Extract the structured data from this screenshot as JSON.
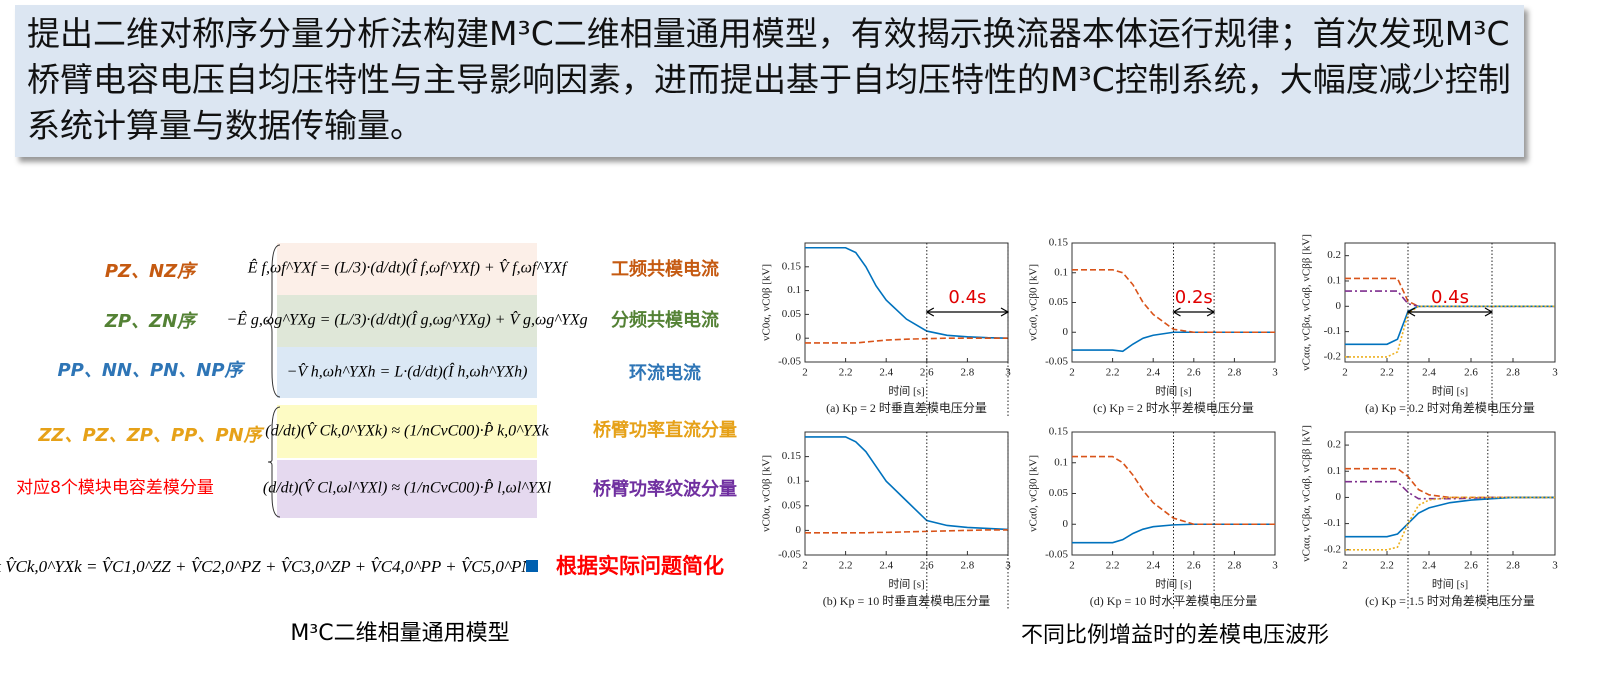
{
  "header": {
    "text": "提出二维对称序分量分析法构建M³C二维相量通用模型，有效揭示换流器本体运行规律；首次发现M³C桥臂电容电压自均压特性与主导影响因素，进而提出基于自均压特性的M³C控制系统，大幅度减少控制系统计算量与数据传输量。"
  },
  "model": {
    "rows": [
      {
        "sequence": "PZ、NZ序",
        "equation": "Ê f,ωf^YXf = (L/3)·(d/dt)(Î f,ωf^YXf) + V̂ f,ωf^YXf",
        "component": "工频共模电流"
      },
      {
        "sequence": "ZP、ZN序",
        "equation": "−Ê g,ωg^YXg = (L/3)·(d/dt)(Î g,ωg^YXg) + V̂ g,ωg^YXg",
        "component": "分频共模电流"
      },
      {
        "sequence": "PP、NN、PN、NP序",
        "equation": "−V̂ h,ωh^YXh = L·(d/dt)(Î h,ωh^YXh)",
        "component": "环流电流"
      },
      {
        "sequence": "ZZ、PZ、ZP、PP、PN序",
        "equation": "(d/dt)(V̂ Ck,0^YXk) ≈ (1/nCvC00)·P̂ k,0^YXk",
        "component": "桥臂功率直流分量"
      },
      {
        "sequence": "对应8个模块电容差模分量",
        "equation": "(d/dt)(V̂ Cl,ωl^YXl) ≈ (1/nCvC00)·P̂ l,ωl^YXl",
        "component": "桥臂功率纹波分量"
      }
    ],
    "sum_equation": "Σk V̂Ck,0^YXk = V̂C1,0^ZZ + V̂C2,0^PZ + V̂C3,0^ZP + V̂C4,0^PP + V̂C5,0^PN",
    "note": "根据实际问题简化",
    "caption": "M³C二维相量通用模型"
  },
  "waveform_caption": "不同比例增益时的差模电压波形",
  "chart_data": [
    {
      "type": "line",
      "ylabel": "vC0α, vC0β [kV]",
      "xlabel": "时间 [s]",
      "caption": "(a) Kp = 2 时垂直差模电压分量",
      "x": [
        2,
        2.1,
        2.2,
        2.25,
        2.3,
        2.35,
        2.4,
        2.5,
        2.6,
        2.7,
        2.8,
        2.9,
        3
      ],
      "xlim": [
        2,
        3
      ],
      "xticks": [
        2,
        2.2,
        2.4,
        2.6,
        2.8,
        3
      ],
      "ylim": [
        -0.05,
        0.2
      ],
      "yticks": [
        -0.05,
        0,
        0.05,
        0.1,
        0.15
      ],
      "series": [
        {
          "color": "#0072bd",
          "dash": "solid",
          "values": [
            0.19,
            0.19,
            0.19,
            0.18,
            0.15,
            0.11,
            0.08,
            0.04,
            0.015,
            0.006,
            0.003,
            0.001,
            0
          ]
        },
        {
          "color": "#d95319",
          "dash": "dashed",
          "values": [
            -0.01,
            -0.01,
            -0.01,
            -0.01,
            -0.008,
            -0.006,
            -0.004,
            -0.002,
            -0.001,
            0,
            0,
            0,
            0
          ]
        }
      ],
      "vlines": [
        2.6,
        3
      ],
      "annotation": {
        "text": "0.4s",
        "from": 2.6,
        "to": 3
      }
    },
    {
      "type": "line",
      "ylabel": "vCα0, vCβ0 [kV]",
      "xlabel": "时间 [s]",
      "caption": "(c) Kp = 2 时水平差模电压分量",
      "x": [
        2,
        2.1,
        2.2,
        2.25,
        2.3,
        2.35,
        2.4,
        2.5,
        2.6,
        2.7,
        2.8,
        2.9,
        3
      ],
      "xlim": [
        2,
        3
      ],
      "xticks": [
        2,
        2.2,
        2.4,
        2.6,
        2.8,
        3
      ],
      "ylim": [
        -0.05,
        0.15
      ],
      "yticks": [
        -0.05,
        0,
        0.05,
        0.1,
        0.15
      ],
      "series": [
        {
          "color": "#0072bd",
          "dash": "solid",
          "values": [
            -0.03,
            -0.03,
            -0.03,
            -0.032,
            -0.02,
            -0.01,
            -0.005,
            0,
            0,
            0,
            0,
            0,
            0
          ]
        },
        {
          "color": "#d95319",
          "dash": "dashed",
          "values": [
            0.105,
            0.105,
            0.105,
            0.1,
            0.08,
            0.05,
            0.03,
            0.005,
            0,
            0,
            0,
            0,
            0
          ]
        }
      ],
      "vlines": [
        2.5,
        2.7
      ],
      "annotation": {
        "text": "0.2s",
        "from": 2.5,
        "to": 2.7
      }
    },
    {
      "type": "line",
      "ylabel": "vCαα, vCβα, vCαβ, vCββ [kV]",
      "xlabel": "时间 [s]",
      "caption": "(a) Kp = 0.2 时对角差模电压分量",
      "x": [
        2,
        2.1,
        2.2,
        2.25,
        2.3,
        2.35,
        2.4,
        2.5,
        2.6,
        2.7,
        2.8,
        2.9,
        3
      ],
      "xlim": [
        2,
        3
      ],
      "xticks": [
        2,
        2.2,
        2.4,
        2.6,
        2.8,
        3
      ],
      "ylim": [
        -0.22,
        0.25
      ],
      "yticks": [
        -0.2,
        -0.1,
        0,
        0.1,
        0.2
      ],
      "series": [
        {
          "color": "#d95319",
          "dash": "dashed",
          "values": [
            0.11,
            0.11,
            0.11,
            0.11,
            0.02,
            0,
            0,
            0,
            0,
            0,
            0,
            0,
            0
          ]
        },
        {
          "color": "#7e2f8e",
          "dash": "dashdot",
          "values": [
            0.06,
            0.06,
            0.06,
            0.06,
            0.01,
            0,
            0,
            0,
            0,
            0,
            0,
            0,
            0
          ]
        },
        {
          "color": "#0072bd",
          "dash": "solid",
          "values": [
            -0.15,
            -0.15,
            -0.15,
            -0.13,
            -0.02,
            0,
            0,
            0,
            0,
            0,
            0,
            0,
            0
          ]
        },
        {
          "color": "#edb120",
          "dash": "dotted",
          "values": [
            -0.2,
            -0.2,
            -0.2,
            -0.18,
            -0.03,
            0,
            0,
            0,
            0,
            0,
            0,
            0,
            0
          ]
        }
      ],
      "vlines": [
        2.3,
        2.7
      ],
      "annotation": {
        "text": "0.4s",
        "from": 2.3,
        "to": 2.7
      }
    },
    {
      "type": "line",
      "ylabel": "vC0α, vC0β [kV]",
      "xlabel": "时间 [s]",
      "caption": "(b) Kp = 10 时垂直差模电压分量",
      "x": [
        2,
        2.1,
        2.2,
        2.25,
        2.3,
        2.35,
        2.4,
        2.5,
        2.6,
        2.7,
        2.8,
        2.9,
        3
      ],
      "xlim": [
        2,
        3
      ],
      "xticks": [
        2,
        2.2,
        2.4,
        2.6,
        2.8,
        3
      ],
      "ylim": [
        -0.05,
        0.2
      ],
      "yticks": [
        -0.05,
        0,
        0.05,
        0.1,
        0.15
      ],
      "series": [
        {
          "color": "#0072bd",
          "dash": "solid",
          "values": [
            0.19,
            0.19,
            0.19,
            0.18,
            0.16,
            0.13,
            0.1,
            0.06,
            0.02,
            0.01,
            0.006,
            0.004,
            0.002
          ]
        },
        {
          "color": "#d95319",
          "dash": "dashed",
          "values": [
            -0.005,
            -0.005,
            -0.005,
            -0.005,
            -0.005,
            -0.004,
            -0.004,
            -0.003,
            -0.002,
            -0.001,
            0,
            0.001,
            0.001
          ]
        }
      ],
      "vlines": [
        2.6,
        3
      ]
    },
    {
      "type": "line",
      "ylabel": "vCα0, vCβ0 [kV]",
      "xlabel": "时间 [s]",
      "caption": "(d) Kp = 10 时水平差模电压分量",
      "x": [
        2,
        2.1,
        2.2,
        2.25,
        2.3,
        2.35,
        2.4,
        2.5,
        2.6,
        2.7,
        2.8,
        2.9,
        3
      ],
      "xlim": [
        2,
        3
      ],
      "xticks": [
        2,
        2.2,
        2.4,
        2.6,
        2.8,
        3
      ],
      "ylim": [
        -0.05,
        0.15
      ],
      "yticks": [
        -0.05,
        0,
        0.05,
        0.1,
        0.15
      ],
      "series": [
        {
          "color": "#0072bd",
          "dash": "solid",
          "values": [
            -0.03,
            -0.03,
            -0.03,
            -0.025,
            -0.015,
            -0.008,
            -0.004,
            -0.001,
            0,
            0,
            0,
            0,
            0
          ]
        },
        {
          "color": "#d95319",
          "dash": "dashed",
          "values": [
            0.11,
            0.11,
            0.11,
            0.1,
            0.08,
            0.055,
            0.035,
            0.01,
            0,
            0,
            0,
            0,
            0
          ]
        }
      ],
      "vlines": [
        2.5,
        2.7
      ]
    },
    {
      "type": "line",
      "ylabel": "vCαα, vCβα, vCαβ, vCββ [kV]",
      "xlabel": "时间 [s]",
      "caption": "(c) Kp = 1.5 时对角差模电压分量",
      "x": [
        2,
        2.1,
        2.2,
        2.25,
        2.3,
        2.35,
        2.4,
        2.5,
        2.6,
        2.7,
        2.8,
        2.9,
        3
      ],
      "xlim": [
        2,
        3
      ],
      "xticks": [
        2,
        2.2,
        2.4,
        2.6,
        2.8,
        3
      ],
      "ylim": [
        -0.22,
        0.25
      ],
      "yticks": [
        -0.2,
        -0.1,
        0,
        0.1,
        0.2
      ],
      "series": [
        {
          "color": "#d95319",
          "dash": "dashed",
          "values": [
            0.11,
            0.11,
            0.11,
            0.11,
            0.08,
            0.03,
            0.01,
            0,
            0,
            0,
            0,
            0,
            0
          ]
        },
        {
          "color": "#7e2f8e",
          "dash": "dashdot",
          "values": [
            0.06,
            0.06,
            0.06,
            0.06,
            0.02,
            -0.005,
            -0.005,
            -0.005,
            -0.003,
            0,
            0,
            0,
            0
          ]
        },
        {
          "color": "#0072bd",
          "dash": "solid",
          "values": [
            -0.15,
            -0.15,
            -0.15,
            -0.14,
            -0.1,
            -0.06,
            -0.04,
            -0.02,
            -0.01,
            -0.005,
            0,
            0,
            0
          ]
        },
        {
          "color": "#edb120",
          "dash": "dotted",
          "values": [
            -0.2,
            -0.2,
            -0.2,
            -0.19,
            -0.1,
            -0.03,
            -0.01,
            0,
            0,
            0,
            0,
            0,
            0
          ]
        }
      ],
      "vlines": [
        2.3,
        2.68
      ]
    }
  ]
}
